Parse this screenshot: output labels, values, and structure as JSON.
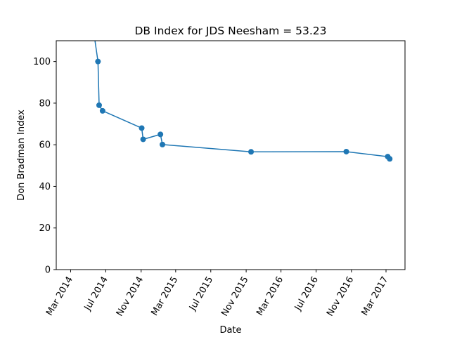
{
  "chart_data": {
    "type": "line",
    "title": "DB Index for JDS Neesham = 53.23",
    "xlabel": "Date",
    "ylabel": "Don Bradman Index",
    "ylim": [
      0,
      110
    ],
    "xlim": [
      "2014-01-10",
      "2017-05-06"
    ],
    "yticks": [
      0,
      20,
      40,
      60,
      80,
      100
    ],
    "xticks": [
      {
        "date": "2014-03-01",
        "label": "Mar 2014"
      },
      {
        "date": "2014-07-01",
        "label": "Jul 2014"
      },
      {
        "date": "2014-11-01",
        "label": "Nov 2014"
      },
      {
        "date": "2015-03-01",
        "label": "Mar 2015"
      },
      {
        "date": "2015-07-01",
        "label": "Jul 2015"
      },
      {
        "date": "2015-11-01",
        "label": "Nov 2015"
      },
      {
        "date": "2016-03-01",
        "label": "Mar 2016"
      },
      {
        "date": "2016-07-01",
        "label": "Jul 2016"
      },
      {
        "date": "2016-11-01",
        "label": "Nov 2016"
      },
      {
        "date": "2017-03-01",
        "label": "Mar 2017"
      }
    ],
    "grid": false,
    "color": "#1f77b4",
    "series": [
      {
        "points": [
          {
            "x": "2014-02-20",
            "y": 200
          },
          {
            "x": "2014-06-04",
            "y": 100
          },
          {
            "x": "2014-06-08",
            "y": 79
          },
          {
            "x": "2014-06-20",
            "y": 76.3
          },
          {
            "x": "2014-11-03",
            "y": 68
          },
          {
            "x": "2014-11-08",
            "y": 62.6
          },
          {
            "x": "2015-01-07",
            "y": 65
          },
          {
            "x": "2015-01-14",
            "y": 60.1
          },
          {
            "x": "2015-11-18",
            "y": 56.6
          },
          {
            "x": "2016-10-14",
            "y": 56.7
          },
          {
            "x": "2017-03-07",
            "y": 54.3
          },
          {
            "x": "2017-03-14",
            "y": 53.23
          }
        ],
        "markers_hidden_before_index": 1
      }
    ]
  }
}
